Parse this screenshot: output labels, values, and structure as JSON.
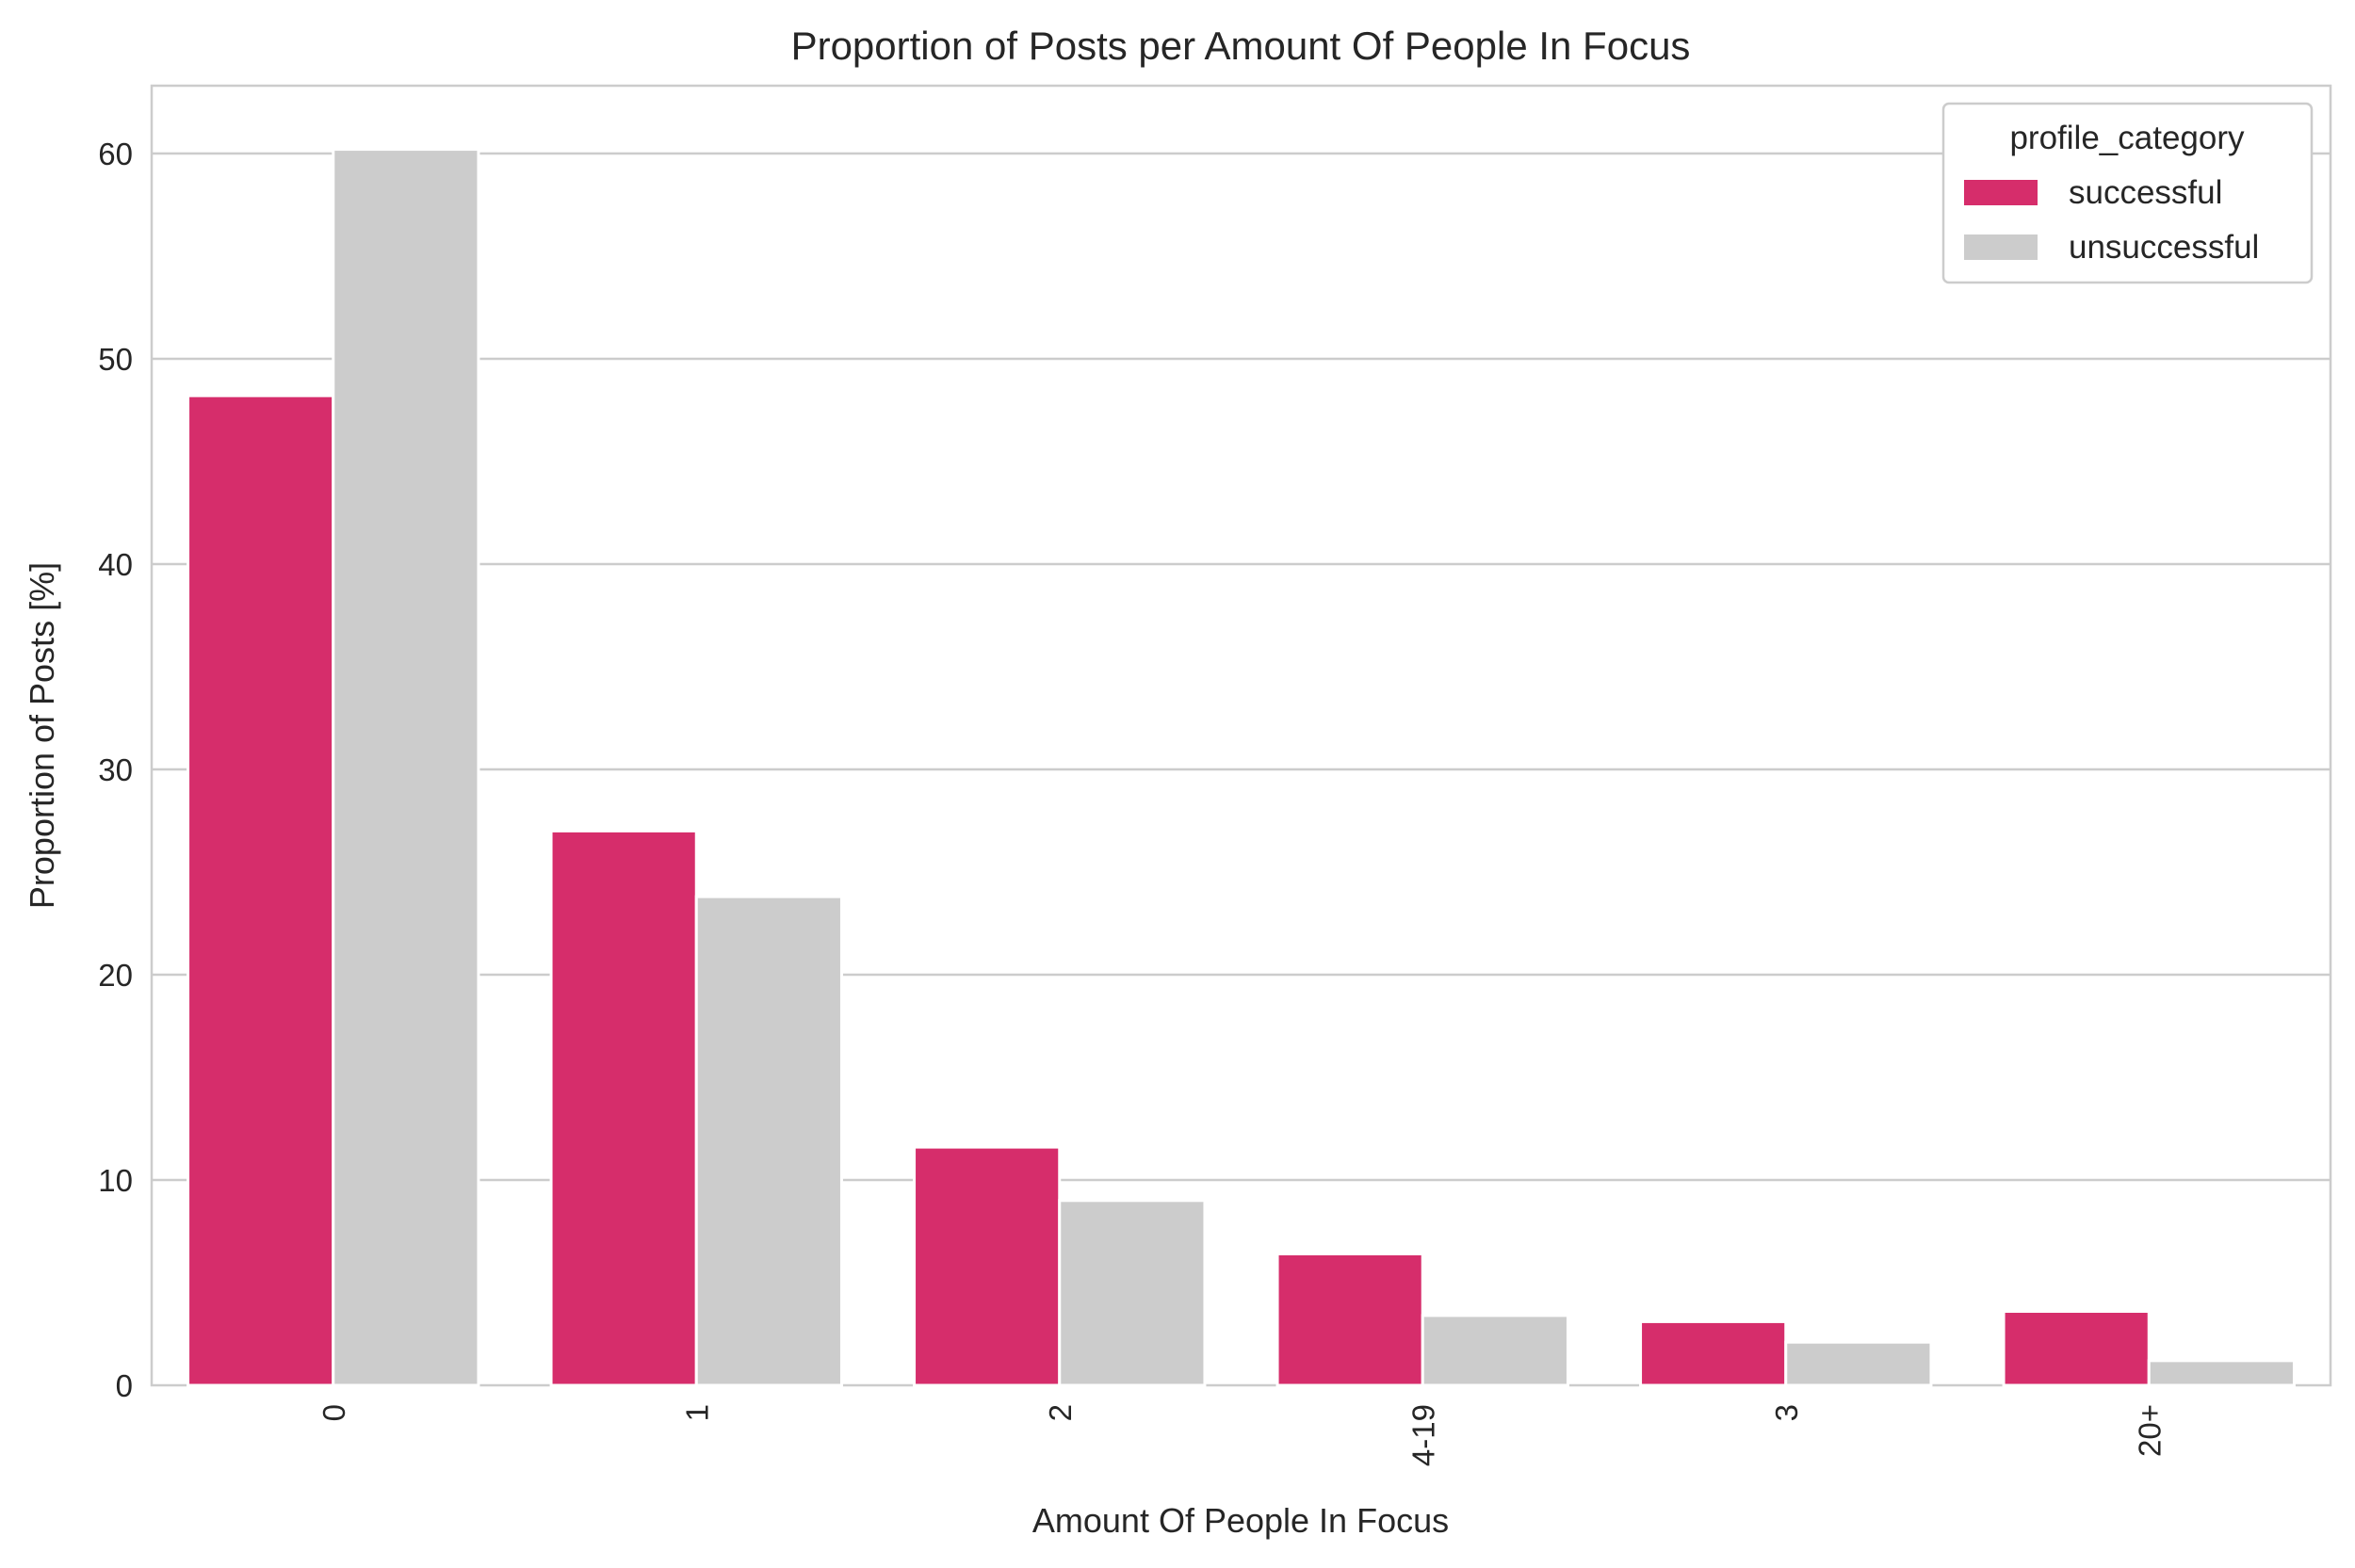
{
  "chart_data": {
    "type": "bar",
    "title": "Proportion of Posts per Amount Of People In Focus",
    "xlabel": "Amount Of People In Focus",
    "ylabel": "Proportion of Posts [%]",
    "categories": [
      "0",
      "1",
      "2",
      "4-19",
      "3",
      "20+"
    ],
    "series": [
      {
        "name": "successful",
        "color": "#d62d6b",
        "values": [
          48.2,
          27.0,
          11.6,
          6.4,
          3.1,
          3.6
        ]
      },
      {
        "name": "unsuccessful",
        "color": "#cccccc",
        "values": [
          60.2,
          23.8,
          9.0,
          3.4,
          2.1,
          1.2
        ]
      }
    ],
    "ylim": [
      0,
      63.3
    ],
    "yticks": [
      0,
      10,
      20,
      30,
      40,
      50,
      60
    ],
    "grid": "horizontal",
    "legend": {
      "title": "profile_category",
      "placement": "top-right"
    }
  }
}
